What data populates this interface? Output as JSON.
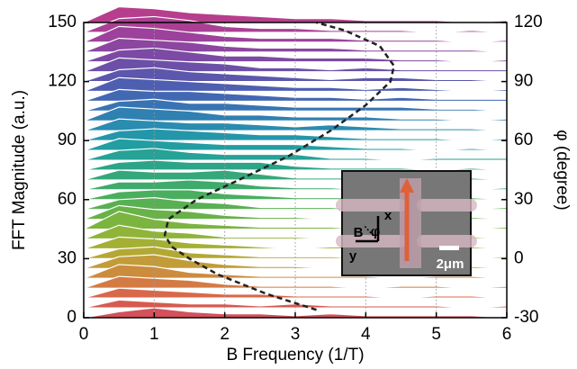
{
  "chart_data": {
    "type": "waterfall",
    "xlabel": "B Frequency (1/T)",
    "ylabel": "FFT Magnitude (a.u.)",
    "y2label": "φ (degree)",
    "xlim": [
      0,
      6
    ],
    "xticks": [
      0,
      1,
      2,
      3,
      4,
      5,
      6
    ],
    "ylim": [
      0,
      150
    ],
    "yticks": [
      0,
      30,
      60,
      90,
      120,
      150
    ],
    "y2lim": [
      -30,
      120
    ],
    "y2ticks": [
      -30,
      0,
      30,
      60,
      90,
      120
    ],
    "grid": true,
    "x": [
      0,
      0.5,
      1,
      1.5,
      2,
      2.5,
      3,
      3.5,
      4,
      4.5,
      5,
      5.5,
      6
    ],
    "series": [
      {
        "phi": -30,
        "color": "#d4505a",
        "values": [
          0,
          3,
          5,
          3,
          2,
          2,
          1,
          2,
          1,
          1,
          1,
          1,
          0
        ]
      },
      {
        "phi": -25,
        "color": "#d65a50",
        "values": [
          0,
          4,
          3,
          2,
          2,
          1,
          2,
          1,
          1,
          1,
          1,
          0,
          1
        ]
      },
      {
        "phi": -20,
        "color": "#d8684a",
        "values": [
          0,
          5,
          4,
          3,
          2,
          2,
          1,
          1,
          1,
          0,
          1,
          1,
          0
        ]
      },
      {
        "phi": -15,
        "color": "#d47a44",
        "values": [
          0,
          6,
          5,
          4,
          2,
          1,
          1,
          1,
          0,
          1,
          1,
          0,
          1
        ]
      },
      {
        "phi": -10,
        "color": "#cc8c3e",
        "values": [
          0,
          7,
          6,
          3,
          2,
          1,
          1,
          1,
          1,
          0,
          1,
          1,
          0
        ]
      },
      {
        "phi": -5,
        "color": "#c29c38",
        "values": [
          0,
          6,
          7,
          4,
          2,
          1,
          1,
          0,
          1,
          1,
          0,
          1,
          0
        ]
      },
      {
        "phi": 0,
        "color": "#b4a834",
        "values": [
          0,
          5,
          6,
          3,
          2,
          1,
          1,
          1,
          0,
          1,
          1,
          0,
          1
        ]
      },
      {
        "phi": 5,
        "color": "#a4b034",
        "values": [
          0,
          6,
          5,
          3,
          2,
          1,
          0,
          1,
          1,
          0,
          1,
          1,
          0
        ]
      },
      {
        "phi": 10,
        "color": "#90b43a",
        "values": [
          0,
          7,
          4,
          3,
          1,
          1,
          1,
          0,
          1,
          1,
          0,
          1,
          0
        ]
      },
      {
        "phi": 15,
        "color": "#7cb440",
        "values": [
          0,
          9,
          5,
          3,
          2,
          1,
          1,
          1,
          0,
          1,
          1,
          0,
          1
        ]
      },
      {
        "phi": 20,
        "color": "#68b248",
        "values": [
          0,
          7,
          5,
          4,
          2,
          1,
          1,
          0,
          1,
          1,
          0,
          1,
          0
        ]
      },
      {
        "phi": 25,
        "color": "#58b052",
        "values": [
          0,
          5,
          6,
          4,
          3,
          1,
          1,
          1,
          0,
          1,
          1,
          0,
          1
        ]
      },
      {
        "phi": 30,
        "color": "#4aae5e",
        "values": [
          0,
          4,
          5,
          5,
          3,
          2,
          1,
          1,
          1,
          0,
          1,
          1,
          0
        ]
      },
      {
        "phi": 35,
        "color": "#3eaa6c",
        "values": [
          0,
          4,
          4,
          5,
          4,
          2,
          1,
          1,
          0,
          1,
          1,
          0,
          1
        ]
      },
      {
        "phi": 40,
        "color": "#34a87a",
        "values": [
          0,
          5,
          4,
          4,
          5,
          3,
          1,
          1,
          1,
          0,
          1,
          1,
          0
        ]
      },
      {
        "phi": 45,
        "color": "#2ca488",
        "values": [
          0,
          4,
          5,
          4,
          4,
          4,
          2,
          1,
          1,
          1,
          0,
          1,
          0
        ]
      },
      {
        "phi": 50,
        "color": "#26a296",
        "values": [
          0,
          5,
          6,
          4,
          3,
          3,
          3,
          1,
          1,
          0,
          1,
          1,
          1
        ]
      },
      {
        "phi": 55,
        "color": "#229ea2",
        "values": [
          0,
          6,
          5,
          4,
          3,
          3,
          3,
          2,
          1,
          1,
          0,
          1,
          0
        ]
      },
      {
        "phi": 60,
        "color": "#2496aa",
        "values": [
          0,
          5,
          6,
          5,
          4,
          3,
          3,
          2,
          1,
          1,
          1,
          0,
          1
        ]
      },
      {
        "phi": 65,
        "color": "#2a8cb0",
        "values": [
          0,
          6,
          5,
          4,
          4,
          3,
          2,
          3,
          2,
          1,
          1,
          1,
          0
        ]
      },
      {
        "phi": 70,
        "color": "#3080b2",
        "values": [
          0,
          7,
          6,
          5,
          3,
          3,
          2,
          2,
          2,
          1,
          1,
          0,
          1
        ]
      },
      {
        "phi": 75,
        "color": "#3874b4",
        "values": [
          0,
          5,
          6,
          4,
          4,
          3,
          2,
          2,
          2,
          2,
          1,
          1,
          0
        ]
      },
      {
        "phi": 80,
        "color": "#4268b4",
        "values": [
          0,
          6,
          5,
          5,
          4,
          3,
          2,
          2,
          1,
          2,
          1,
          1,
          1
        ]
      },
      {
        "phi": 85,
        "color": "#4e5eb0",
        "values": [
          0,
          7,
          6,
          5,
          4,
          3,
          2,
          2,
          1,
          2,
          1,
          0,
          1
        ]
      },
      {
        "phi": 90,
        "color": "#5c56ac",
        "values": [
          0,
          6,
          7,
          5,
          4,
          3,
          2,
          1,
          2,
          2,
          1,
          1,
          0
        ]
      },
      {
        "phi": 95,
        "color": "#6c50a8",
        "values": [
          0,
          7,
          6,
          5,
          4,
          2,
          2,
          1,
          2,
          1,
          1,
          1,
          1
        ]
      },
      {
        "phi": 100,
        "color": "#7c4aa4",
        "values": [
          0,
          6,
          7,
          5,
          3,
          3,
          2,
          2,
          2,
          1,
          1,
          0,
          1
        ]
      },
      {
        "phi": 105,
        "color": "#8c46a0",
        "values": [
          0,
          7,
          6,
          5,
          3,
          2,
          2,
          2,
          1,
          1,
          1,
          1,
          0
        ]
      },
      {
        "phi": 110,
        "color": "#9c429c",
        "values": [
          0,
          8,
          7,
          5,
          3,
          2,
          2,
          2,
          1,
          1,
          1,
          0,
          1
        ]
      },
      {
        "phi": 115,
        "color": "#aa4094",
        "values": [
          0,
          7,
          8,
          6,
          3,
          2,
          2,
          1,
          1,
          1,
          0,
          1,
          0
        ]
      },
      {
        "phi": 120,
        "color": "#b63e8c",
        "values": [
          0,
          8,
          7,
          5,
          4,
          3,
          2,
          2,
          1,
          1,
          1,
          0,
          1
        ]
      }
    ],
    "curve": {
      "axis": "y2",
      "color": "#222222",
      "x": [
        3.3,
        2.6,
        1.9,
        1.5,
        1.25,
        1.15,
        1.2,
        1.6,
        2.2,
        2.9,
        3.5,
        4.0,
        4.35,
        4.4,
        4.2,
        3.7,
        3.3
      ],
      "values": [
        -26,
        -18,
        -8,
        0,
        6,
        12,
        20,
        30,
        40,
        52,
        65,
        78,
        90,
        98,
        108,
        116,
        120
      ]
    },
    "inset_labels": {
      "b": "B",
      "phi": "φ",
      "x": "x",
      "y": "y",
      "scale": "2μm"
    }
  }
}
